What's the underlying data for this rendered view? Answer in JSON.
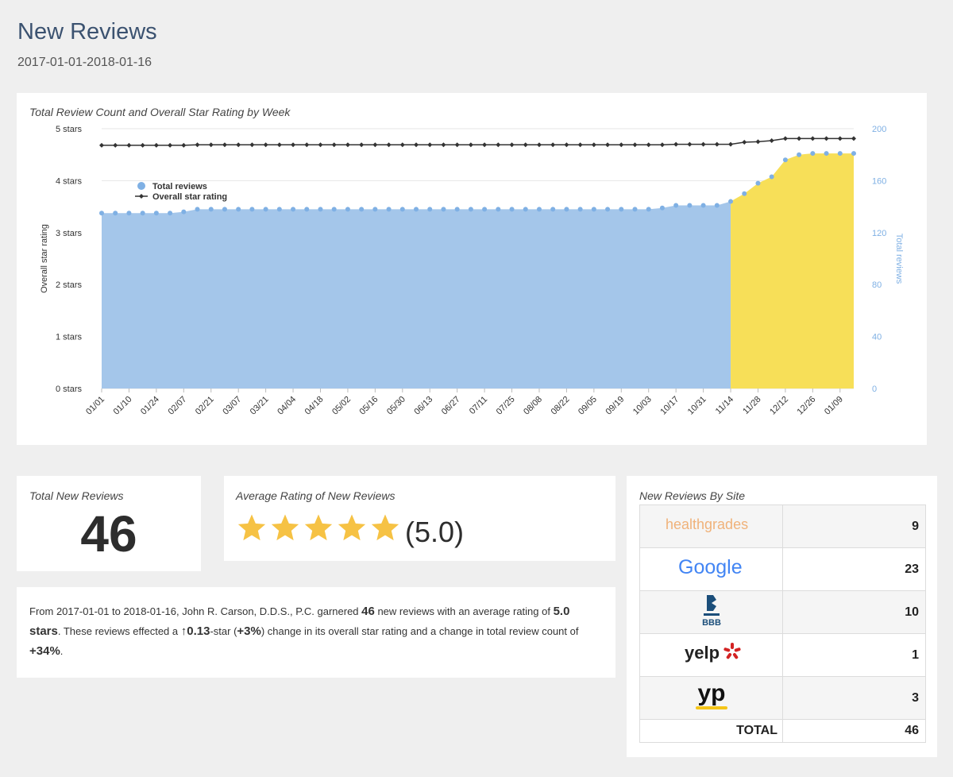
{
  "header": {
    "title": "New Reviews",
    "date_range": "2017-01-01-2018-01-16"
  },
  "chart": {
    "title": "Total Review Count and Overall Star Rating by Week"
  },
  "chart_data": {
    "type": "area+line",
    "title": "Total Review Count and Overall Star Rating by Week",
    "y_left": {
      "label": "Overall star rating",
      "range": [
        0,
        5
      ],
      "ticks": [
        {
          "value": 0,
          "label": "0 stars"
        },
        {
          "value": 1,
          "label": "1 stars"
        },
        {
          "value": 2,
          "label": "2 stars"
        },
        {
          "value": 3,
          "label": "3 stars"
        },
        {
          "value": 4,
          "label": "4 stars"
        },
        {
          "value": 5,
          "label": "5 stars"
        }
      ]
    },
    "y_right": {
      "label": "Total reviews",
      "range": [
        0,
        200
      ],
      "ticks": [
        0,
        40,
        80,
        120,
        160,
        200
      ]
    },
    "x_tick_labels": [
      "01/01",
      "01/10",
      "01/24",
      "02/07",
      "02/21",
      "03/07",
      "03/21",
      "04/04",
      "04/18",
      "05/02",
      "05/16",
      "05/30",
      "06/13",
      "06/27",
      "07/11",
      "07/25",
      "08/08",
      "08/22",
      "09/05",
      "09/19",
      "10/03",
      "10/17",
      "10/31",
      "11/14",
      "11/28",
      "12/12",
      "12/26",
      "01/09"
    ],
    "legend": {
      "placement": "top-left",
      "entries": [
        "Total reviews",
        "Overall star rating"
      ]
    },
    "highlight_from_index": 46,
    "colors": {
      "total_reviews_fill": "#a4c6ea",
      "total_reviews_marker": "#7fb0e4",
      "highlight_fill": "#f7df58",
      "rating_line": "#333333",
      "grid": "#e6e6e6"
    },
    "series": [
      {
        "name": "Total reviews",
        "axis": "right",
        "values": [
          135,
          135,
          135,
          135,
          135,
          135,
          136,
          138,
          138,
          138,
          138,
          138,
          138,
          138,
          138,
          138,
          138,
          138,
          138,
          138,
          138,
          138,
          138,
          138,
          138,
          138,
          138,
          138,
          138,
          138,
          138,
          138,
          138,
          138,
          138,
          138,
          138,
          138,
          138,
          138,
          138,
          139,
          141,
          141,
          141,
          141,
          144,
          150,
          158,
          163,
          176,
          180,
          181,
          181,
          181,
          181
        ]
      },
      {
        "name": "Overall star rating",
        "axis": "left",
        "values": [
          4.68,
          4.68,
          4.68,
          4.68,
          4.68,
          4.68,
          4.68,
          4.69,
          4.69,
          4.69,
          4.69,
          4.69,
          4.69,
          4.69,
          4.69,
          4.69,
          4.69,
          4.69,
          4.69,
          4.69,
          4.69,
          4.69,
          4.69,
          4.69,
          4.69,
          4.69,
          4.69,
          4.69,
          4.69,
          4.69,
          4.69,
          4.69,
          4.69,
          4.69,
          4.69,
          4.69,
          4.69,
          4.69,
          4.69,
          4.69,
          4.69,
          4.69,
          4.7,
          4.7,
          4.7,
          4.7,
          4.7,
          4.74,
          4.75,
          4.77,
          4.81,
          4.81,
          4.81,
          4.81,
          4.81,
          4.81
        ]
      }
    ]
  },
  "total_new_reviews": {
    "title": "Total New Reviews",
    "value": "46"
  },
  "average_rating": {
    "title": "Average Rating of New Reviews",
    "value_text": "(5.0)",
    "stars": 5,
    "star_color": "#f6c244"
  },
  "summary": {
    "prefix": "From 2017-01-01 to 2018-01-16, John R. Carson, D.D.S., P.C. garnered ",
    "count": "46",
    "mid1": " new reviews with an average rating of ",
    "rating": "5.0",
    "rating_unit": "stars",
    "mid2": ". These reviews effected a ",
    "arrow": "↑",
    "star_change": "0.13",
    "mid3": "-star (",
    "pct_change": "+3%",
    "mid4": ") change in its overall star rating and a change in total review count of ",
    "count_change": "+34%",
    "suffix": "."
  },
  "sites": {
    "title": "New Reviews By Site",
    "rows": [
      {
        "site": "healthgrades",
        "logo": "healthgrades-logo",
        "count": "9"
      },
      {
        "site": "Google",
        "logo": "google-logo",
        "count": "23"
      },
      {
        "site": "BBB",
        "logo": "bbb-logo",
        "count": "10"
      },
      {
        "site": "yelp",
        "logo": "yelp-logo",
        "count": "1"
      },
      {
        "site": "yp",
        "logo": "yp-logo",
        "count": "3"
      }
    ],
    "total_label": "TOTAL",
    "total_value": "46"
  }
}
